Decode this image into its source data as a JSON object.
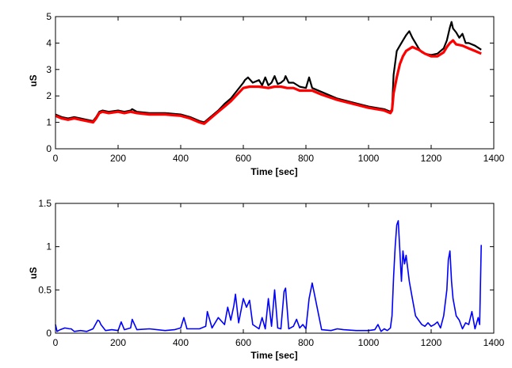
{
  "chart_data": [
    {
      "type": "line",
      "title": "",
      "xlabel": "Time [sec]",
      "ylabel": "uS",
      "xlim": [
        0,
        1400
      ],
      "ylim": [
        0,
        5
      ],
      "xticks": [
        0,
        200,
        400,
        600,
        800,
        1000,
        1200,
        1400
      ],
      "yticks": [
        0,
        1,
        2,
        3,
        4,
        5
      ],
      "grid": false,
      "series": [
        {
          "color": "#000000",
          "x": [
            0,
            20,
            40,
            60,
            80,
            100,
            120,
            130,
            140,
            150,
            170,
            200,
            220,
            240,
            245,
            260,
            300,
            350,
            400,
            430,
            460,
            475,
            490,
            520,
            540,
            560,
            580,
            600,
            605,
            615,
            630,
            650,
            660,
            670,
            680,
            690,
            700,
            710,
            720,
            730,
            735,
            745,
            760,
            780,
            800,
            810,
            820,
            850,
            900,
            950,
            1000,
            1050,
            1070,
            1075,
            1080,
            1090,
            1100,
            1110,
            1120,
            1130,
            1140,
            1150,
            1160,
            1170,
            1180,
            1200,
            1220,
            1240,
            1250,
            1260,
            1265,
            1270,
            1280,
            1290,
            1300,
            1310,
            1320,
            1340,
            1360
          ],
          "values": [
            1.3,
            1.2,
            1.15,
            1.2,
            1.15,
            1.1,
            1.05,
            1.2,
            1.4,
            1.45,
            1.4,
            1.45,
            1.4,
            1.45,
            1.5,
            1.4,
            1.35,
            1.35,
            1.3,
            1.2,
            1.05,
            1.0,
            1.15,
            1.45,
            1.7,
            1.9,
            2.2,
            2.5,
            2.6,
            2.7,
            2.5,
            2.6,
            2.4,
            2.7,
            2.4,
            2.5,
            2.75,
            2.45,
            2.5,
            2.6,
            2.75,
            2.5,
            2.5,
            2.35,
            2.3,
            2.7,
            2.3,
            2.15,
            1.9,
            1.75,
            1.6,
            1.5,
            1.4,
            1.5,
            2.8,
            3.7,
            3.9,
            4.1,
            4.3,
            4.45,
            4.2,
            4.0,
            3.8,
            3.65,
            3.6,
            3.55,
            3.6,
            3.8,
            4.1,
            4.6,
            4.8,
            4.55,
            4.4,
            4.2,
            4.35,
            4.0,
            4.0,
            3.9,
            3.75
          ]
        },
        {
          "color": "#ff0000",
          "x": [
            0,
            20,
            40,
            60,
            80,
            100,
            120,
            130,
            140,
            150,
            170,
            200,
            220,
            240,
            260,
            300,
            350,
            400,
            430,
            460,
            475,
            490,
            520,
            540,
            560,
            580,
            600,
            620,
            650,
            680,
            700,
            720,
            740,
            760,
            780,
            800,
            820,
            850,
            900,
            950,
            1000,
            1050,
            1070,
            1075,
            1080,
            1090,
            1100,
            1110,
            1120,
            1140,
            1160,
            1180,
            1200,
            1220,
            1240,
            1250,
            1260,
            1270,
            1280,
            1300,
            1320,
            1340,
            1360
          ],
          "values": [
            1.25,
            1.15,
            1.1,
            1.15,
            1.1,
            1.05,
            1.0,
            1.15,
            1.35,
            1.4,
            1.35,
            1.4,
            1.35,
            1.4,
            1.35,
            1.3,
            1.3,
            1.25,
            1.15,
            1.0,
            0.95,
            1.1,
            1.4,
            1.6,
            1.8,
            2.05,
            2.3,
            2.35,
            2.35,
            2.3,
            2.35,
            2.35,
            2.3,
            2.3,
            2.2,
            2.2,
            2.2,
            2.05,
            1.85,
            1.7,
            1.55,
            1.45,
            1.35,
            1.45,
            2.1,
            2.7,
            3.2,
            3.5,
            3.7,
            3.85,
            3.75,
            3.6,
            3.5,
            3.5,
            3.65,
            3.85,
            4.0,
            4.1,
            3.95,
            3.9,
            3.8,
            3.7,
            3.6
          ]
        }
      ]
    },
    {
      "type": "line",
      "title": "",
      "xlabel": "Time [sec]",
      "ylabel": "uS",
      "xlim": [
        0,
        1400
      ],
      "ylim": [
        0,
        1.5
      ],
      "xticks": [
        0,
        200,
        400,
        600,
        800,
        1000,
        1200,
        1400
      ],
      "yticks": [
        0,
        0.5,
        1,
        1.5
      ],
      "grid": false,
      "series": [
        {
          "color": "#0000ff",
          "x": [
            0,
            5,
            15,
            30,
            45,
            50,
            60,
            80,
            100,
            120,
            135,
            140,
            145,
            160,
            180,
            200,
            210,
            220,
            240,
            245,
            260,
            300,
            350,
            380,
            400,
            410,
            420,
            440,
            460,
            480,
            485,
            500,
            520,
            540,
            550,
            560,
            570,
            575,
            585,
            600,
            610,
            620,
            630,
            650,
            660,
            670,
            680,
            690,
            700,
            710,
            720,
            730,
            735,
            745,
            760,
            770,
            780,
            790,
            800,
            810,
            820,
            850,
            880,
            900,
            920,
            960,
            1000,
            1020,
            1030,
            1040,
            1050,
            1060,
            1070,
            1075,
            1080,
            1085,
            1090,
            1095,
            1100,
            1105,
            1110,
            1115,
            1120,
            1130,
            1140,
            1150,
            1160,
            1170,
            1180,
            1190,
            1200,
            1210,
            1220,
            1230,
            1240,
            1250,
            1255,
            1260,
            1265,
            1270,
            1280,
            1290,
            1300,
            1310,
            1320,
            1330,
            1340,
            1350,
            1355,
            1360
          ],
          "values": [
            0.1,
            0.02,
            0.04,
            0.06,
            0.05,
            0.05,
            0.02,
            0.03,
            0.02,
            0.05,
            0.15,
            0.14,
            0.1,
            0.03,
            0.04,
            0.03,
            0.13,
            0.04,
            0.06,
            0.16,
            0.04,
            0.05,
            0.03,
            0.04,
            0.06,
            0.18,
            0.05,
            0.05,
            0.05,
            0.08,
            0.25,
            0.06,
            0.18,
            0.1,
            0.3,
            0.15,
            0.32,
            0.45,
            0.12,
            0.4,
            0.3,
            0.38,
            0.1,
            0.05,
            0.18,
            0.05,
            0.4,
            0.08,
            0.5,
            0.06,
            0.05,
            0.48,
            0.52,
            0.05,
            0.08,
            0.16,
            0.06,
            0.1,
            0.05,
            0.4,
            0.58,
            0.04,
            0.03,
            0.05,
            0.04,
            0.03,
            0.03,
            0.04,
            0.1,
            0.02,
            0.05,
            0.03,
            0.06,
            0.2,
            0.65,
            1.0,
            1.25,
            1.3,
            0.95,
            0.6,
            0.95,
            0.8,
            0.9,
            0.6,
            0.4,
            0.2,
            0.15,
            0.1,
            0.08,
            0.12,
            0.08,
            0.1,
            0.13,
            0.06,
            0.2,
            0.5,
            0.85,
            0.95,
            0.6,
            0.4,
            0.2,
            0.15,
            0.05,
            0.12,
            0.1,
            0.25,
            0.05,
            0.18,
            0.1,
            1.02
          ]
        }
      ]
    }
  ]
}
